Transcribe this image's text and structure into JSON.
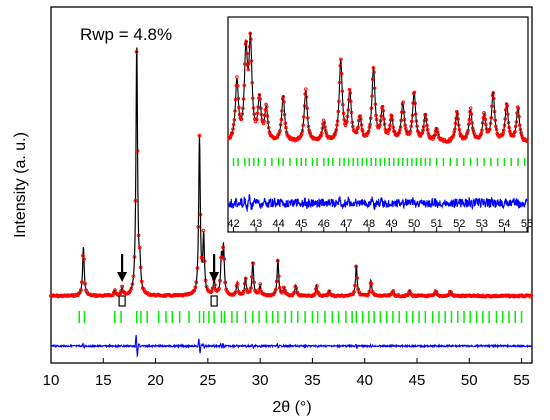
{
  "chart_data": [
    {
      "type": "line",
      "title": "",
      "annotation": "Rwp = 4.8%",
      "xlabel": "2θ (°)",
      "ylabel": "Intensity (a. u.)",
      "xlim": [
        10,
        56
      ],
      "xticks": [
        10,
        15,
        20,
        25,
        30,
        35,
        40,
        45,
        50,
        55
      ],
      "grid": false,
      "colors": {
        "observed": "#ff0000",
        "calculated": "#000000",
        "reflections": "#00ee00",
        "difference": "#0000ff"
      },
      "peaks": [
        {
          "x": 13.1,
          "h": 0.19
        },
        {
          "x": 16.1,
          "h": 0.02
        },
        {
          "x": 16.8,
          "h": 0.03
        },
        {
          "x": 18.2,
          "h": 0.97
        },
        {
          "x": 18.5,
          "h": 0.1
        },
        {
          "x": 24.2,
          "h": 0.61
        },
        {
          "x": 24.6,
          "h": 0.22
        },
        {
          "x": 25.6,
          "h": 0.06
        },
        {
          "x": 26.3,
          "h": 0.14
        },
        {
          "x": 26.5,
          "h": 0.18
        },
        {
          "x": 27.8,
          "h": 0.05
        },
        {
          "x": 28.6,
          "h": 0.07
        },
        {
          "x": 29.3,
          "h": 0.13
        },
        {
          "x": 30.0,
          "h": 0.04
        },
        {
          "x": 31.7,
          "h": 0.14
        },
        {
          "x": 32.3,
          "h": 0.03
        },
        {
          "x": 33.4,
          "h": 0.04
        },
        {
          "x": 35.4,
          "h": 0.04
        },
        {
          "x": 36.6,
          "h": 0.02
        },
        {
          "x": 39.2,
          "h": 0.12
        },
        {
          "x": 40.6,
          "h": 0.06
        },
        {
          "x": 42.7,
          "h": 0.02
        },
        {
          "x": 44.3,
          "h": 0.02
        },
        {
          "x": 46.8,
          "h": 0.02
        },
        {
          "x": 48.2,
          "h": 0.02
        }
      ],
      "reflection_positions": [
        12.7,
        13.2,
        16.1,
        16.7,
        18.2,
        18.6,
        19.2,
        20.3,
        21.0,
        21.6,
        22.3,
        23.2,
        24.2,
        24.6,
        25.1,
        25.6,
        26.3,
        26.6,
        27.3,
        27.8,
        28.6,
        29.3,
        29.9,
        30.6,
        31.2,
        31.7,
        32.4,
        33.0,
        33.6,
        34.3,
        35.0,
        35.5,
        36.2,
        36.9,
        37.5,
        38.2,
        38.8,
        39.2,
        39.8,
        40.4,
        40.9,
        41.5,
        42.1,
        42.7,
        43.3,
        44.0,
        44.6,
        45.2,
        45.8,
        46.5,
        47.1,
        47.7,
        48.3,
        48.9,
        49.5,
        50.1,
        50.7,
        51.3,
        51.9,
        52.6,
        53.2,
        53.8,
        54.4,
        55.0
      ],
      "arrows": [
        16.8,
        25.6
      ]
    },
    {
      "type": "line",
      "title": "",
      "xlim": [
        41.8,
        55
      ],
      "xticks": [
        42,
        43,
        44,
        45,
        46,
        47,
        48,
        49,
        50,
        51,
        52,
        53,
        54,
        55
      ],
      "peaks": [
        {
          "x": 42.15,
          "h": 0.55
        },
        {
          "x": 42.55,
          "h": 0.8
        },
        {
          "x": 42.75,
          "h": 0.88
        },
        {
          "x": 43.15,
          "h": 0.38
        },
        {
          "x": 43.45,
          "h": 0.3
        },
        {
          "x": 44.2,
          "h": 0.42
        },
        {
          "x": 45.2,
          "h": 0.48
        },
        {
          "x": 46.0,
          "h": 0.18
        },
        {
          "x": 46.75,
          "h": 0.75
        },
        {
          "x": 47.15,
          "h": 0.45
        },
        {
          "x": 47.6,
          "h": 0.22
        },
        {
          "x": 48.2,
          "h": 0.68
        },
        {
          "x": 48.6,
          "h": 0.3
        },
        {
          "x": 49.0,
          "h": 0.22
        },
        {
          "x": 49.5,
          "h": 0.35
        },
        {
          "x": 50.0,
          "h": 0.45
        },
        {
          "x": 50.5,
          "h": 0.25
        },
        {
          "x": 51.0,
          "h": 0.12
        },
        {
          "x": 51.9,
          "h": 0.28
        },
        {
          "x": 52.5,
          "h": 0.3
        },
        {
          "x": 53.1,
          "h": 0.25
        },
        {
          "x": 53.5,
          "h": 0.45
        },
        {
          "x": 54.1,
          "h": 0.35
        },
        {
          "x": 54.6,
          "h": 0.32
        }
      ],
      "reflection_positions": [
        42.0,
        42.2,
        42.5,
        42.7,
        42.9,
        43.1,
        43.4,
        43.7,
        44.0,
        44.2,
        44.5,
        44.8,
        45.0,
        45.2,
        45.5,
        45.7,
        46.0,
        46.2,
        46.4,
        46.7,
        46.9,
        47.1,
        47.3,
        47.5,
        47.7,
        47.9,
        48.1,
        48.3,
        48.5,
        48.7,
        48.9,
        49.1,
        49.3,
        49.5,
        49.7,
        49.9,
        50.1,
        50.3,
        50.5,
        50.7,
        51.0,
        51.3,
        51.6,
        51.9,
        52.2,
        52.5,
        52.8,
        53.1,
        53.4,
        53.7,
        54.0,
        54.3,
        54.6,
        54.9
      ]
    }
  ]
}
